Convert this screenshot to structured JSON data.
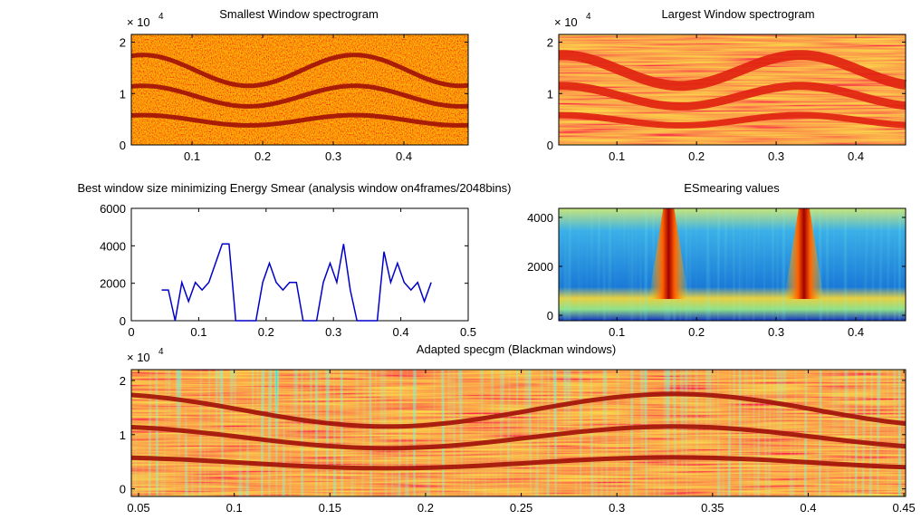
{
  "chart_data": [
    {
      "type": "heatmap",
      "title": "Smallest Window spectrogram",
      "y_exponent": {
        "base": "× 10",
        "power": "4"
      },
      "xlim": [
        0.014,
        0.491
      ],
      "ylim": [
        0,
        2.15
      ],
      "xticks": [
        0.1,
        0.2,
        0.3,
        0.4
      ],
      "yticks": [
        0,
        1,
        2
      ]
    },
    {
      "type": "heatmap",
      "title": "Largest Window spectrogram",
      "y_exponent": {
        "base": "× 10",
        "power": "4"
      },
      "xlim": [
        0.027,
        0.4625
      ],
      "ylim": [
        0,
        2.15
      ],
      "xticks": [
        0.1,
        0.2,
        0.3,
        0.4
      ],
      "yticks": [
        0,
        1,
        2
      ]
    },
    {
      "type": "line",
      "title": "Best window size minimizing Energy Smear (analysis window on4frames/2048bins)",
      "xlim": [
        0,
        0.5
      ],
      "ylim": [
        0,
        6000
      ],
      "xticks": [
        0,
        0.1,
        0.2,
        0.3,
        0.4,
        0.5
      ],
      "yticks": [
        0,
        2000,
        4000,
        6000
      ],
      "color": "#0000c8",
      "x": [
        0.045,
        0.055,
        0.065,
        0.075,
        0.085,
        0.095,
        0.105,
        0.115,
        0.125,
        0.135,
        0.145,
        0.155,
        0.165,
        0.175,
        0.185,
        0.195,
        0.205,
        0.215,
        0.225,
        0.235,
        0.245,
        0.255,
        0.265,
        0.275,
        0.285,
        0.295,
        0.305,
        0.315,
        0.325,
        0.335,
        0.345,
        0.355,
        0.365,
        0.375,
        0.385,
        0.395,
        0.405,
        0.415,
        0.425,
        0.435,
        0.445
      ],
      "values": [
        1638,
        1638,
        0,
        2048,
        1024,
        2048,
        1638,
        2048,
        3072,
        4096,
        4096,
        0,
        0,
        0,
        0,
        2048,
        3072,
        2048,
        1638,
        2048,
        2048,
        0,
        0,
        0,
        2048,
        3072,
        2048,
        4096,
        1638,
        0,
        0,
        0,
        0,
        3686,
        2048,
        3072,
        2048,
        1638,
        2048,
        1024,
        2048
      ]
    },
    {
      "type": "heatmap",
      "title": "ESmearing values",
      "xlim": [
        0.027,
        0.4625
      ],
      "ylim": [
        -220,
        4370
      ],
      "xticks": [
        0.1,
        0.2,
        0.3,
        0.4
      ],
      "yticks": [
        0,
        2000,
        4000
      ]
    },
    {
      "type": "heatmap",
      "title": "Adapted specgm (Blackman windows)",
      "y_exponent": {
        "base": "× 10",
        "power": "4"
      },
      "xlim": [
        0.0462,
        0.4509
      ],
      "ylim": [
        -0.14,
        2.2
      ],
      "xticks": [
        0.05,
        0.1,
        0.15,
        0.2,
        0.25,
        0.3,
        0.35,
        0.4,
        0.45
      ],
      "yticks": [
        0,
        1,
        2
      ]
    }
  ]
}
